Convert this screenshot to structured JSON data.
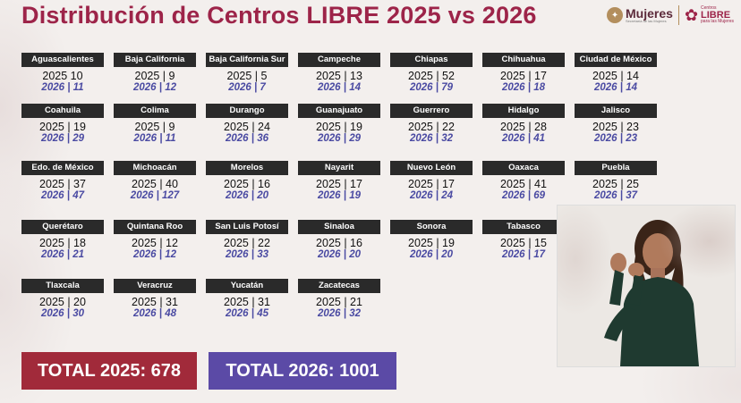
{
  "title": "Distribución de Centros LIBRE 2025 vs 2026",
  "logos": {
    "mujeres_main": "Mujeres",
    "mujeres_sub": "Secretaría de las Mujeres",
    "libre_top": "Centros",
    "libre_main": "LIBRE",
    "libre_bottom": "para las Mujeres"
  },
  "states": [
    {
      "name": "Aguascalientes",
      "y2025": "2025 10",
      "y2026": "2026 | 11"
    },
    {
      "name": "Baja California",
      "y2025": "2025 | 9",
      "y2026": "2026 | 12"
    },
    {
      "name": "Baja California Sur",
      "y2025": "2025 | 5",
      "y2026": "2026 | 7"
    },
    {
      "name": "Campeche",
      "y2025": "2025 | 13",
      "y2026": "2026 | 14"
    },
    {
      "name": "Chiapas",
      "y2025": "2025 | 52",
      "y2026": "2026 | 79"
    },
    {
      "name": "Chihuahua",
      "y2025": "2025 | 17",
      "y2026": "2026 | 18"
    },
    {
      "name": "Ciudad de México",
      "y2025": "2025 | 14",
      "y2026": "2026 | 14"
    },
    {
      "name": "Coahuila",
      "y2025": "2025 | 19",
      "y2026": "2026 | 29"
    },
    {
      "name": "Colima",
      "y2025": "2025 | 9",
      "y2026": "2026 | 11"
    },
    {
      "name": "Durango",
      "y2025": "2025 | 24",
      "y2026": "2026 | 36"
    },
    {
      "name": "Guanajuato",
      "y2025": "2025 | 19",
      "y2026": "2026 | 29"
    },
    {
      "name": "Guerrero",
      "y2025": "2025 | 22",
      "y2026": "2026 | 32"
    },
    {
      "name": "Hidalgo",
      "y2025": "2025 | 28",
      "y2026": "2026 | 41"
    },
    {
      "name": "Jalisco",
      "y2025": "2025 | 23",
      "y2026": "2026 | 23"
    },
    {
      "name": "Edo. de México",
      "y2025": "2025 | 37",
      "y2026": "2026 | 47"
    },
    {
      "name": "Michoacán",
      "y2025": "2025 | 40",
      "y2026": "2026 | 127"
    },
    {
      "name": "Morelos",
      "y2025": "2025 | 16",
      "y2026": "2026 | 20"
    },
    {
      "name": "Nayarit",
      "y2025": "2025 | 17",
      "y2026": "2026 | 19"
    },
    {
      "name": "Nuevo León",
      "y2025": "2025 | 17",
      "y2026": "2026 | 24"
    },
    {
      "name": "Oaxaca",
      "y2025": "2025 | 41",
      "y2026": "2026 | 69"
    },
    {
      "name": "Puebla",
      "y2025": "2025 | 25",
      "y2026": "2026 | 37"
    },
    {
      "name": "Querétaro",
      "y2025": "2025 | 18",
      "y2026": "2026 | 21"
    },
    {
      "name": "Quintana Roo",
      "y2025": "2025 | 12",
      "y2026": "2026 | 12"
    },
    {
      "name": "San Luis Potosí",
      "y2025": "2025 | 22",
      "y2026": "2026 | 33"
    },
    {
      "name": "Sinaloa",
      "y2025": "2025 | 16",
      "y2026": "2026 | 20"
    },
    {
      "name": "Sonora",
      "y2025": "2025 | 19",
      "y2026": "2026 | 20"
    },
    {
      "name": "Tabasco",
      "y2025": "2025 | 15",
      "y2026": "2026 | 17"
    },
    {
      "name": "Tlaxcala",
      "y2025": "2025 | 20",
      "y2026": "2026 | 30"
    },
    {
      "name": "Veracruz",
      "y2025": "2025 | 31",
      "y2026": "2026 | 48"
    },
    {
      "name": "Yucatán",
      "y2025": "2025 | 31",
      "y2026": "2026 | 45"
    },
    {
      "name": "Zacatecas",
      "y2025": "2025 | 21",
      "y2026": "2026 | 32"
    }
  ],
  "totals": {
    "total_2025": "TOTAL 2025: 678",
    "total_2026": "TOTAL 2026: 1001"
  },
  "colors": {
    "title": "#9d2449",
    "card_header": "#2a2a2a",
    "value_2026": "#4a4aa2",
    "total_2025_bg": "#a12a3a",
    "total_2026_bg": "#5b4aa6"
  }
}
